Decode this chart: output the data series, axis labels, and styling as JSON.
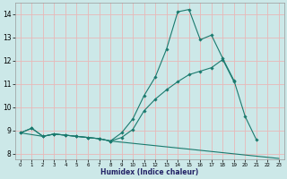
{
  "title": "",
  "xlabel": "Humidex (Indice chaleur)",
  "bg_color": "#cce8e8",
  "grid_color": "#e8b8b8",
  "line_color": "#1a7a6e",
  "xlim": [
    -0.5,
    23.5
  ],
  "ylim": [
    7.75,
    14.5
  ],
  "xticks": [
    0,
    1,
    2,
    3,
    4,
    5,
    6,
    7,
    8,
    9,
    10,
    11,
    12,
    13,
    14,
    15,
    16,
    17,
    18,
    19,
    20,
    21,
    22,
    23
  ],
  "yticks": [
    8,
    9,
    10,
    11,
    12,
    13,
    14
  ],
  "line1_x": [
    0,
    1,
    2,
    3,
    4,
    5,
    6,
    7,
    8,
    9,
    10,
    11,
    12,
    13,
    14,
    15,
    16,
    17,
    18,
    19,
    20,
    21
  ],
  "line1_y": [
    8.9,
    9.1,
    8.75,
    8.85,
    8.8,
    8.75,
    8.7,
    8.65,
    8.55,
    8.9,
    9.5,
    10.5,
    11.3,
    12.5,
    14.1,
    14.2,
    12.9,
    13.1,
    12.1,
    11.15,
    9.6,
    8.6
  ],
  "line2_x": [
    0,
    1,
    2,
    3,
    4,
    5,
    6,
    7,
    8,
    9,
    10,
    11,
    12,
    13,
    14,
    15,
    16,
    17,
    18,
    19
  ],
  "line2_y": [
    8.9,
    9.1,
    8.75,
    8.85,
    8.8,
    8.75,
    8.7,
    8.65,
    8.55,
    8.7,
    9.05,
    9.85,
    10.35,
    10.75,
    11.1,
    11.4,
    11.55,
    11.7,
    12.05,
    11.1
  ],
  "line3_x": [
    0,
    2,
    3,
    4,
    5,
    6,
    7,
    8,
    9,
    10,
    11,
    12,
    13,
    14,
    15,
    16,
    17,
    18,
    19,
    20,
    21,
    22,
    23
  ],
  "line3_y": [
    8.9,
    8.75,
    8.85,
    8.8,
    8.75,
    8.7,
    8.65,
    8.55,
    8.5,
    8.45,
    8.4,
    8.35,
    8.3,
    8.25,
    8.2,
    8.15,
    8.1,
    8.05,
    8.0,
    7.95,
    7.9,
    7.85,
    7.8
  ]
}
